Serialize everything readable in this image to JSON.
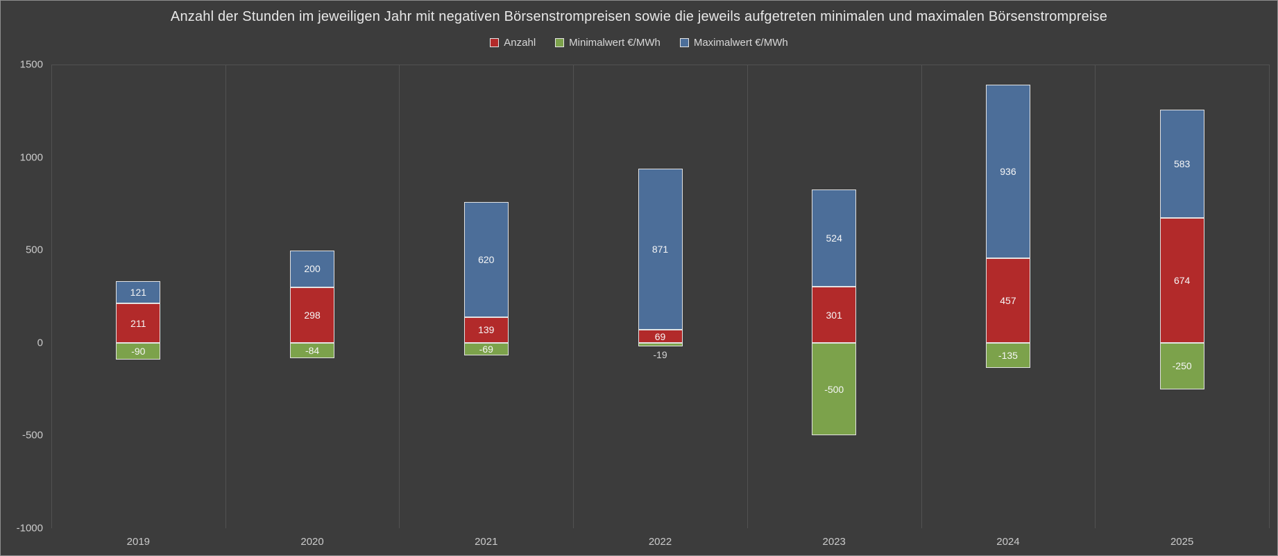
{
  "title": "Anzahl der Stunden im jeweiligen Jahr mit negativen Börsenstrompreisen sowie die jeweils aufgetreten minimalen und maximalen Börsenstrompreise",
  "legend": {
    "items": [
      {
        "label": "Anzahl",
        "color": "#b22a2a"
      },
      {
        "label": "Minimalwert €/MWh",
        "color": "#7ca24b"
      },
      {
        "label": "Maximalwert €/MWh",
        "color": "#4c6e99"
      }
    ]
  },
  "colors": {
    "background": "#3c3c3c",
    "grid": "#525252",
    "axis_text": "#cbcbcb",
    "bar_border": "#e3e3e3",
    "anzahl": "#b22a2a",
    "minimalwert": "#7ca24b",
    "maximalwert": "#4c6e99"
  },
  "chart_data": {
    "type": "bar",
    "stacked": true,
    "title": "Anzahl der Stunden im jeweiligen Jahr mit negativen Börsenstrompreisen sowie die jeweils aufgetreten minimalen und maximalen Börsenstrompreise",
    "categories": [
      "2019",
      "2020",
      "2021",
      "2022",
      "2023",
      "2024",
      "2025"
    ],
    "series": [
      {
        "name": "Anzahl",
        "color": "#b22a2a",
        "values": [
          211,
          298,
          139,
          69,
          301,
          457,
          674
        ]
      },
      {
        "name": "Minimalwert €/MWh",
        "color": "#7ca24b",
        "values": [
          -90,
          -84,
          -69,
          -19,
          -500,
          -135,
          -250
        ]
      },
      {
        "name": "Maximalwert €/MWh",
        "color": "#4c6e99",
        "values": [
          121,
          200,
          620,
          871,
          524,
          936,
          583
        ]
      }
    ],
    "stack_tops": [
      332,
      498,
      759,
      940,
      825,
      1393,
      1257
    ],
    "xlabel": "",
    "ylabel": "",
    "ylim": [
      -1000,
      1500
    ],
    "yticks": [
      1500,
      1000,
      500,
      0,
      -500,
      -1000
    ],
    "grid": {
      "vertical_category_lines": true,
      "top_line_at": 1500,
      "horizontal": false
    },
    "legend_position": "top"
  }
}
